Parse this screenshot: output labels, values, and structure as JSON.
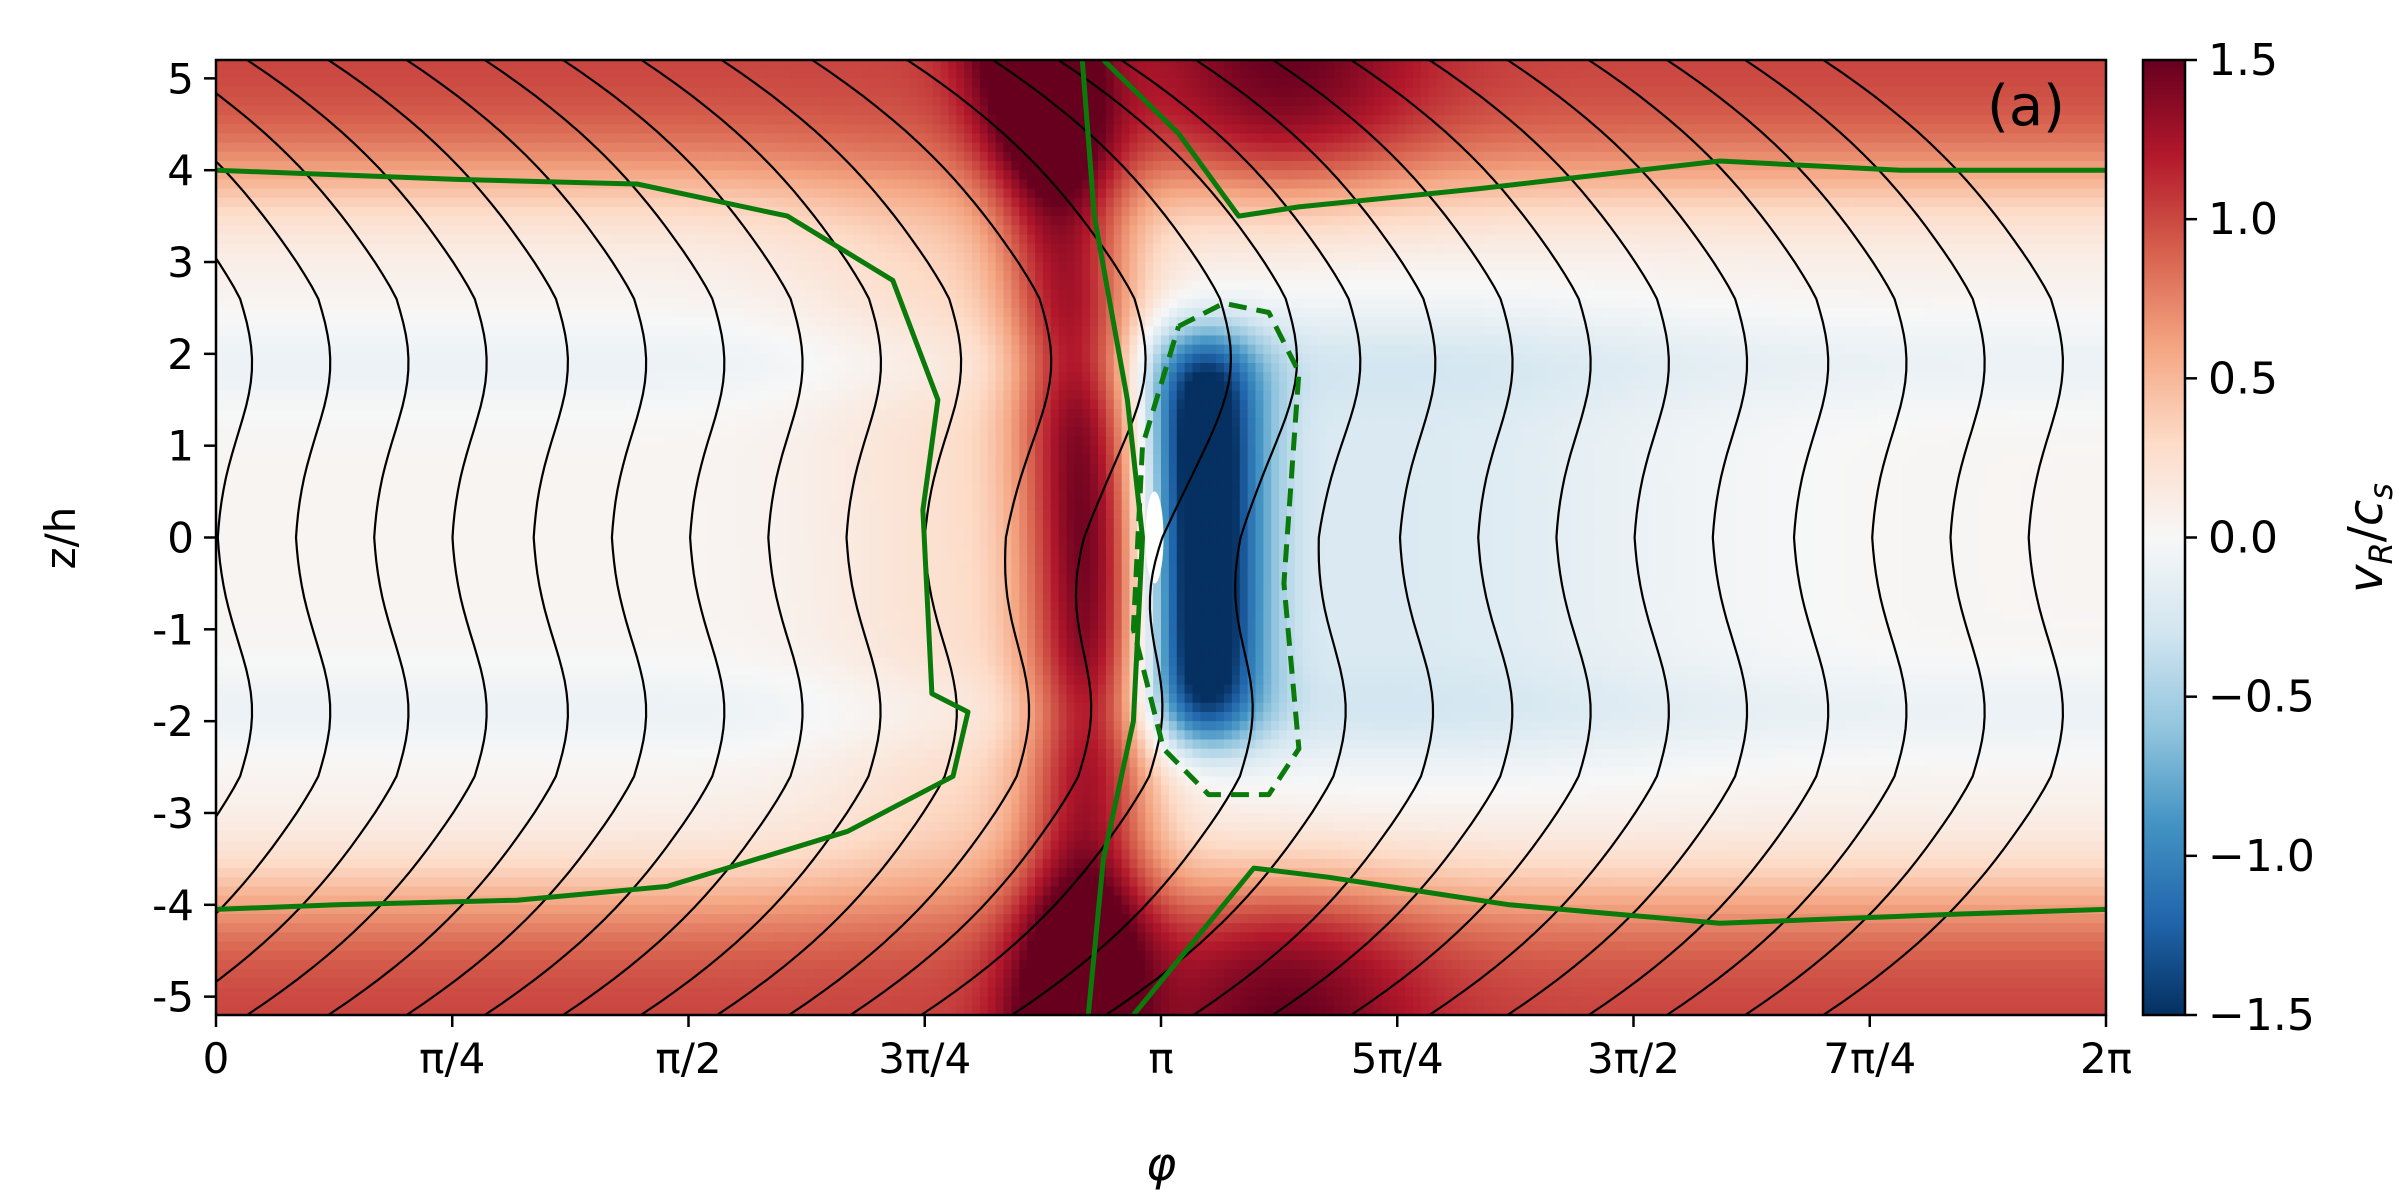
{
  "chart_data": {
    "type": "heatmap",
    "panel_label": "(a)",
    "xlabel": "φ",
    "ylabel": "z/h",
    "colorbar_label": "v_R/c_s",
    "colormap": "RdBu_r",
    "xlim": [
      0,
      6.283185
    ],
    "ylim": [
      -5.2,
      5.2
    ],
    "clim": [
      -1.5,
      1.5
    ],
    "x_ticks": [
      {
        "value": 0,
        "label": "0"
      },
      {
        "value": 0.785398,
        "label": "π/4"
      },
      {
        "value": 1.570796,
        "label": "π/2"
      },
      {
        "value": 2.356194,
        "label": "3π/4"
      },
      {
        "value": 3.141593,
        "label": "π"
      },
      {
        "value": 3.926991,
        "label": "5π/4"
      },
      {
        "value": 4.712389,
        "label": "3π/2"
      },
      {
        "value": 5.497787,
        "label": "7π/4"
      },
      {
        "value": 6.283185,
        "label": "2π"
      }
    ],
    "y_ticks": [
      {
        "value": 5,
        "label": "5"
      },
      {
        "value": 4,
        "label": "4"
      },
      {
        "value": 3,
        "label": "3"
      },
      {
        "value": 2,
        "label": "2"
      },
      {
        "value": 1,
        "label": "1"
      },
      {
        "value": 0,
        "label": "0"
      },
      {
        "value": -1,
        "label": "-1"
      },
      {
        "value": -2,
        "label": "-2"
      },
      {
        "value": -3,
        "label": "-3"
      },
      {
        "value": -4,
        "label": "-4"
      },
      {
        "value": -5,
        "label": "-5"
      }
    ],
    "colorbar_ticks": [
      {
        "value": 1.5,
        "label": "1.5"
      },
      {
        "value": 1.0,
        "label": "1.0"
      },
      {
        "value": 0.5,
        "label": "0.5"
      },
      {
        "value": 0.0,
        "label": "0.0"
      },
      {
        "value": -0.5,
        "label": "−0.5"
      },
      {
        "value": -1.0,
        "label": "−1.0"
      },
      {
        "value": -1.5,
        "label": "−1.5"
      }
    ],
    "colormap_stops": [
      "#053061",
      "#2166ac",
      "#4393c3",
      "#92c5de",
      "#d1e5f0",
      "#f7f7f7",
      "#fddbc7",
      "#f4a582",
      "#d6604d",
      "#b2182b",
      "#67001f"
    ],
    "field_features": {
      "background_band_z": [
        -2,
        2
      ],
      "high_altitude_band_value": 0.9,
      "shock_front_phi": [
        [
          -5.2,
          2.95
        ],
        [
          -2,
          3.05
        ],
        [
          0,
          3.1
        ],
        [
          2,
          3.05
        ],
        [
          5.2,
          2.85
        ]
      ],
      "negative_lobe_center": [
        3.3,
        0.0
      ],
      "negative_lobe_min": -1.5
    },
    "streamlines": {
      "color": "#000000",
      "count": 24,
      "description_phi_at_midplane": [
        0.0,
        0.26,
        0.52,
        0.78,
        1.05,
        1.31,
        1.57,
        1.83,
        2.09,
        2.35,
        2.62,
        2.88,
        3.14,
        3.4,
        3.66,
        3.93,
        4.19,
        4.45,
        4.71,
        4.97,
        5.24,
        5.5,
        5.76,
        6.02
      ]
    },
    "contours": [
      {
        "style": "solid",
        "color": "#0a7a0a",
        "points": [
          [
            0,
            4.0
          ],
          [
            0.8,
            3.9
          ],
          [
            1.4,
            3.85
          ],
          [
            1.9,
            3.5
          ],
          [
            2.25,
            2.8
          ],
          [
            2.4,
            1.5
          ],
          [
            2.35,
            0.3
          ],
          [
            2.38,
            -1.7
          ],
          [
            2.5,
            -1.9
          ],
          [
            2.45,
            -2.6
          ],
          [
            2.1,
            -3.2
          ],
          [
            1.5,
            -3.8
          ],
          [
            1.0,
            -3.95
          ],
          [
            0.4,
            -4.0
          ],
          [
            0,
            -4.05
          ]
        ]
      },
      {
        "style": "solid",
        "color": "#0a7a0a",
        "points": [
          [
            2.88,
            5.2
          ],
          [
            2.92,
            3.5
          ],
          [
            3.03,
            1.5
          ],
          [
            3.08,
            0.0
          ],
          [
            3.05,
            -2.0
          ],
          [
            2.95,
            -3.5
          ],
          [
            2.9,
            -5.2
          ]
        ]
      },
      {
        "style": "solid",
        "color": "#0a7a0a",
        "points": [
          [
            2.95,
            5.2
          ],
          [
            3.2,
            4.4
          ],
          [
            3.4,
            3.5
          ],
          [
            3.6,
            3.6
          ],
          [
            4.2,
            3.8
          ],
          [
            5.0,
            4.1
          ],
          [
            5.6,
            4.0
          ],
          [
            6.283,
            4.0
          ]
        ]
      },
      {
        "style": "solid",
        "color": "#0a7a0a",
        "points": [
          [
            3.05,
            -5.2
          ],
          [
            3.25,
            -4.4
          ],
          [
            3.45,
            -3.6
          ],
          [
            3.7,
            -3.7
          ],
          [
            4.3,
            -4.0
          ],
          [
            5.0,
            -4.2
          ],
          [
            5.8,
            -4.1
          ],
          [
            6.283,
            -4.05
          ]
        ]
      },
      {
        "style": "dashed",
        "color": "#0a7a0a",
        "points": [
          [
            3.2,
            2.3
          ],
          [
            3.35,
            2.55
          ],
          [
            3.5,
            2.45
          ],
          [
            3.6,
            1.8
          ],
          [
            3.55,
            -0.5
          ],
          [
            3.6,
            -2.3
          ],
          [
            3.5,
            -2.8
          ],
          [
            3.3,
            -2.8
          ],
          [
            3.15,
            -2.3
          ],
          [
            3.05,
            -1.0
          ],
          [
            3.08,
            1.0
          ],
          [
            3.2,
            2.3
          ]
        ]
      }
    ]
  }
}
